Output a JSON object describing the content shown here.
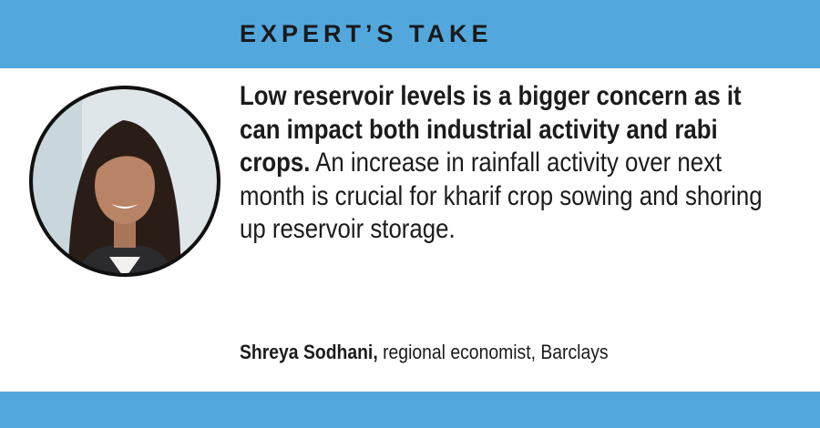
{
  "header": {
    "title": "EXPERT’S TAKE"
  },
  "quote": {
    "emphasis": "Low reservoir levels is a bigger concern as it can impact both industrial activity and rabi crops.",
    "text": "An increase in rainfall activity over next month is crucial for kharif crop sowing and shoring up reservoir storage."
  },
  "attribution": {
    "name": "Shreya Sodhani,",
    "role": "regional economist, Barclays"
  }
}
